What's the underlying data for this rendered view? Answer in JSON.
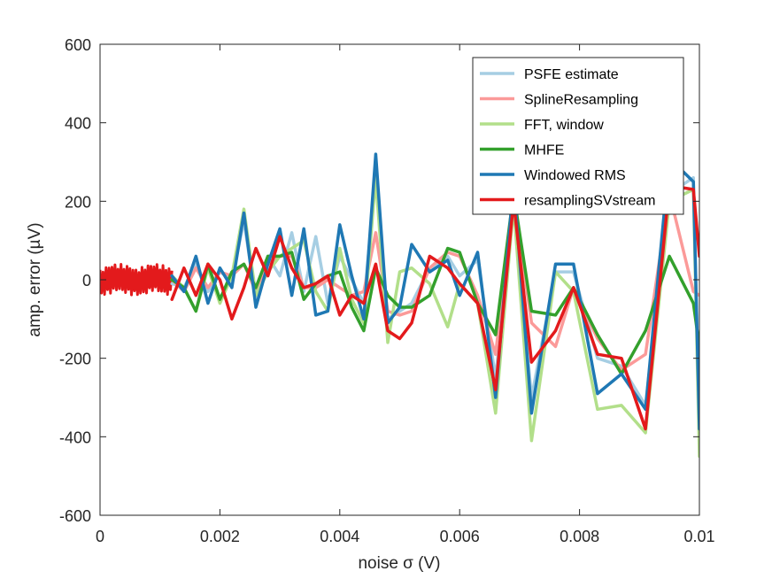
{
  "chart_data": {
    "type": "line",
    "title": "",
    "xlabel": "noise σ (V)",
    "ylabel": "amp. error (µV)",
    "xlim": [
      0,
      0.01
    ],
    "ylim": [
      -600,
      600
    ],
    "xticks": [
      0,
      0.002,
      0.004,
      0.006,
      0.008,
      0.01
    ],
    "xtick_labels": [
      "0",
      "0.002",
      "0.004",
      "0.006",
      "0.008",
      "0.01"
    ],
    "yticks": [
      -600,
      -400,
      -200,
      0,
      200,
      400,
      600
    ],
    "ytick_labels": [
      "-600",
      "-400",
      "-200",
      "0",
      "200",
      "400",
      "600"
    ],
    "grid": false,
    "legend_position": "top-right",
    "series": [
      {
        "name": "PSFE estimate",
        "color": "#a6cee3",
        "x": [
          0.0012,
          0.0014,
          0.0016,
          0.0018,
          0.002,
          0.0022,
          0.0024,
          0.0026,
          0.0028,
          0.003,
          0.0032,
          0.0034,
          0.0036,
          0.0038,
          0.004,
          0.0042,
          0.0044,
          0.0046,
          0.0048,
          0.005,
          0.0052,
          0.0055,
          0.0058,
          0.006,
          0.0063,
          0.0066,
          0.0069,
          0.0072,
          0.0076,
          0.0079,
          0.0083,
          0.0087,
          0.0091,
          0.0095,
          0.0099,
          0.01
        ],
        "y": [
          -10,
          -20,
          40,
          -30,
          20,
          0,
          150,
          -50,
          60,
          10,
          120,
          -30,
          110,
          -60,
          60,
          0,
          -60,
          260,
          -100,
          -80,
          -60,
          30,
          60,
          10,
          50,
          -250,
          190,
          -300,
          20,
          20,
          -200,
          -220,
          -320,
          220,
          260,
          -380
        ]
      },
      {
        "name": "SplineResampling",
        "color": "#fb9a99",
        "x": [
          0.0012,
          0.0014,
          0.0016,
          0.0018,
          0.002,
          0.0022,
          0.0024,
          0.0026,
          0.0028,
          0.003,
          0.0032,
          0.0034,
          0.0036,
          0.0038,
          0.004,
          0.0042,
          0.0044,
          0.0046,
          0.0048,
          0.005,
          0.0052,
          0.0055,
          0.0058,
          0.006,
          0.0063,
          0.0066,
          0.0069,
          0.0072,
          0.0076,
          0.0079,
          0.0083,
          0.0087,
          0.0091,
          0.0095,
          0.0099,
          0.01
        ],
        "y": [
          0,
          -30,
          30,
          -20,
          20,
          10,
          40,
          -30,
          40,
          60,
          60,
          -20,
          -20,
          0,
          -20,
          -40,
          -30,
          120,
          -80,
          -90,
          -80,
          30,
          70,
          60,
          -40,
          -190,
          210,
          -110,
          -170,
          -20,
          -150,
          -230,
          -190,
          220,
          -30,
          -40
        ]
      },
      {
        "name": "FFT, window",
        "color": "#b2df8a",
        "x": [
          0.0012,
          0.0014,
          0.0016,
          0.0018,
          0.002,
          0.0022,
          0.0024,
          0.0026,
          0.0028,
          0.003,
          0.0032,
          0.0034,
          0.0036,
          0.0038,
          0.004,
          0.0042,
          0.0044,
          0.0046,
          0.0048,
          0.005,
          0.0052,
          0.0055,
          0.0058,
          0.006,
          0.0063,
          0.0066,
          0.0069,
          0.0072,
          0.0076,
          0.0079,
          0.0083,
          0.0087,
          0.0091,
          0.0095,
          0.0099,
          0.01
        ],
        "y": [
          10,
          -20,
          -80,
          30,
          -60,
          10,
          180,
          -40,
          20,
          60,
          80,
          100,
          -30,
          -80,
          80,
          -50,
          -110,
          260,
          -160,
          20,
          30,
          -10,
          -120,
          -10,
          -60,
          -340,
          190,
          -410,
          20,
          -30,
          -330,
          -320,
          -390,
          200,
          230,
          -450
        ]
      },
      {
        "name": "MHFE",
        "color": "#33a02c",
        "x": [
          0.0012,
          0.0014,
          0.0016,
          0.0018,
          0.002,
          0.0022,
          0.0024,
          0.0026,
          0.0028,
          0.003,
          0.0032,
          0.0034,
          0.0036,
          0.0038,
          0.004,
          0.0042,
          0.0044,
          0.0046,
          0.0048,
          0.005,
          0.0052,
          0.0055,
          0.0058,
          0.006,
          0.0063,
          0.0066,
          0.0069,
          0.0072,
          0.0076,
          0.0079,
          0.0083,
          0.0087,
          0.0091,
          0.0095,
          0.0099,
          0.01
        ],
        "y": [
          0,
          -20,
          -80,
          40,
          -50,
          20,
          40,
          -20,
          60,
          60,
          70,
          -50,
          -10,
          10,
          20,
          -70,
          -130,
          30,
          -40,
          -70,
          -70,
          -40,
          80,
          70,
          -60,
          -140,
          220,
          -80,
          -90,
          -20,
          -140,
          -240,
          -130,
          60,
          -60,
          -170
        ]
      },
      {
        "name": "Windowed RMS",
        "color": "#1f78b4",
        "x": [
          0.0012,
          0.0014,
          0.0016,
          0.0018,
          0.002,
          0.0022,
          0.0024,
          0.0026,
          0.0028,
          0.003,
          0.0032,
          0.0034,
          0.0036,
          0.0038,
          0.004,
          0.0042,
          0.0044,
          0.0046,
          0.0048,
          0.005,
          0.0052,
          0.0055,
          0.0058,
          0.006,
          0.0063,
          0.0066,
          0.0069,
          0.0072,
          0.0076,
          0.0079,
          0.0083,
          0.0087,
          0.0091,
          0.0095,
          0.0099,
          0.01
        ],
        "y": [
          10,
          -30,
          60,
          -60,
          30,
          -20,
          170,
          -70,
          40,
          130,
          -40,
          130,
          -90,
          -80,
          140,
          10,
          -100,
          320,
          -110,
          -70,
          90,
          20,
          50,
          -40,
          70,
          -300,
          250,
          -340,
          40,
          40,
          -290,
          -240,
          -330,
          310,
          250,
          -380
        ]
      },
      {
        "name": "resamplingSVstream",
        "color": "#e31a1c",
        "x": [
          0.0012,
          0.0014,
          0.0016,
          0.0018,
          0.002,
          0.0022,
          0.0024,
          0.0026,
          0.0028,
          0.003,
          0.0032,
          0.0034,
          0.0036,
          0.0038,
          0.004,
          0.0042,
          0.0044,
          0.0046,
          0.0048,
          0.005,
          0.0052,
          0.0055,
          0.0058,
          0.006,
          0.0063,
          0.0066,
          0.0069,
          0.0072,
          0.0076,
          0.0079,
          0.0083,
          0.0087,
          0.0091,
          0.0095,
          0.0099,
          0.01
        ],
        "y": [
          -50,
          30,
          -40,
          40,
          0,
          -100,
          -20,
          80,
          10,
          110,
          30,
          -20,
          -10,
          10,
          -90,
          -40,
          -60,
          40,
          -130,
          -150,
          -110,
          60,
          30,
          -10,
          -60,
          -280,
          200,
          -210,
          -130,
          -20,
          -190,
          -200,
          -380,
          240,
          230,
          60
        ]
      }
    ]
  }
}
